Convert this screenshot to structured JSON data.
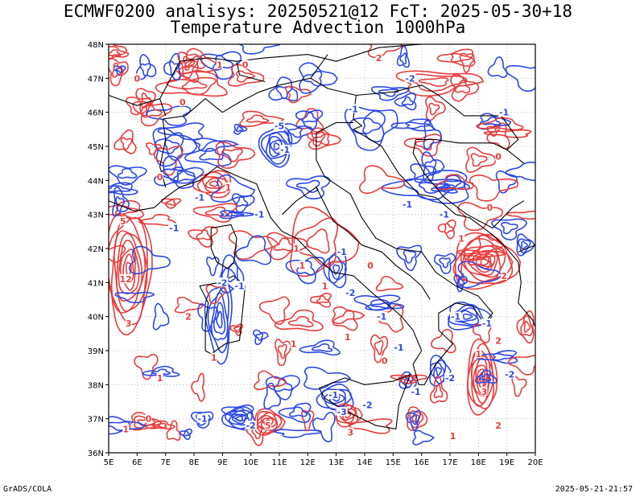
{
  "title_line1": "ECMWF0200 analisys: 20250521@12 FcT: 2025-05-30+18",
  "title_line2": "Temperature Advection 1000hPa",
  "credit": "GrADS/COLA",
  "timestamp": "2025-05-21-21:57",
  "map": {
    "lon_range": [
      5,
      20
    ],
    "lat_range": [
      36,
      48
    ],
    "lon_labels": [
      "5E",
      "6E",
      "7E",
      "8E",
      "9E",
      "10E",
      "11E",
      "12E",
      "13E",
      "14E",
      "15E",
      "16E",
      "17E",
      "18E",
      "19E",
      "20E"
    ],
    "lat_labels": [
      "36N",
      "37N",
      "38N",
      "39N",
      "40N",
      "41N",
      "42N",
      "43N",
      "44N",
      "45N",
      "46N",
      "47N",
      "48N"
    ],
    "colors": {
      "warm_advection": "#e83c3c",
      "cold_advection": "#2a48e6",
      "border": "#000000",
      "grid": "#b0b0b0"
    }
  },
  "contour_labels": [
    {
      "lon": 5.6,
      "lat": 41.1,
      "text": "12",
      "color": "warm"
    },
    {
      "lon": 5.5,
      "lat": 42.8,
      "text": "5",
      "color": "warm"
    },
    {
      "lon": 5.7,
      "lat": 39.8,
      "text": "3",
      "color": "warm"
    },
    {
      "lon": 7.8,
      "lat": 40.0,
      "text": "2",
      "color": "warm"
    },
    {
      "lon": 9.0,
      "lat": 41.0,
      "text": "-2",
      "color": "cold"
    },
    {
      "lon": 9.6,
      "lat": 40.9,
      "text": "-1",
      "color": "cold"
    },
    {
      "lon": 7.6,
      "lat": 46.3,
      "text": "0",
      "color": "warm"
    },
    {
      "lon": 6.0,
      "lat": 47.0,
      "text": "0",
      "color": "warm"
    },
    {
      "lon": 8.9,
      "lat": 47.4,
      "text": "1",
      "color": "warm"
    },
    {
      "lon": 9.8,
      "lat": 47.4,
      "text": "0",
      "color": "warm"
    },
    {
      "lon": 14.5,
      "lat": 47.6,
      "text": "2",
      "color": "warm"
    },
    {
      "lon": 15.6,
      "lat": 47.0,
      "text": "-2",
      "color": "cold"
    },
    {
      "lon": 13.6,
      "lat": 46.1,
      "text": "-1",
      "color": "cold"
    },
    {
      "lon": 11.0,
      "lat": 45.6,
      "text": "-5",
      "color": "cold"
    },
    {
      "lon": 11.2,
      "lat": 44.9,
      "text": "-1",
      "color": "cold"
    },
    {
      "lon": 9.2,
      "lat": 43.8,
      "text": "1",
      "color": "warm"
    },
    {
      "lon": 8.2,
      "lat": 43.5,
      "text": "-1",
      "color": "cold"
    },
    {
      "lon": 6.8,
      "lat": 44.1,
      "text": "0",
      "color": "warm"
    },
    {
      "lon": 10.3,
      "lat": 43.0,
      "text": "-1",
      "color": "cold"
    },
    {
      "lon": 7.3,
      "lat": 42.6,
      "text": "-1",
      "color": "cold"
    },
    {
      "lon": 11.6,
      "lat": 42.0,
      "text": "1",
      "color": "warm"
    },
    {
      "lon": 13.2,
      "lat": 41.9,
      "text": "-1",
      "color": "cold"
    },
    {
      "lon": 12.6,
      "lat": 40.9,
      "text": "1",
      "color": "warm"
    },
    {
      "lon": 13.5,
      "lat": 40.7,
      "text": "-2",
      "color": "cold"
    },
    {
      "lon": 14.6,
      "lat": 40.0,
      "text": "-1",
      "color": "cold"
    },
    {
      "lon": 14.2,
      "lat": 41.5,
      "text": "0",
      "color": "warm"
    },
    {
      "lon": 15.5,
      "lat": 43.3,
      "text": "-1",
      "color": "cold"
    },
    {
      "lon": 18.9,
      "lat": 46.0,
      "text": "-1",
      "color": "cold"
    },
    {
      "lon": 18.7,
      "lat": 44.7,
      "text": "0",
      "color": "warm"
    },
    {
      "lon": 16.8,
      "lat": 43.0,
      "text": "-1",
      "color": "cold"
    },
    {
      "lon": 18.4,
      "lat": 43.2,
      "text": "0",
      "color": "warm"
    },
    {
      "lon": 17.4,
      "lat": 42.3,
      "text": "1",
      "color": "warm"
    },
    {
      "lon": 18.9,
      "lat": 41.2,
      "text": "2",
      "color": "warm"
    },
    {
      "lon": 17.2,
      "lat": 40.0,
      "text": "-1",
      "color": "cold"
    },
    {
      "lon": 18.3,
      "lat": 39.8,
      "text": "-1",
      "color": "cold"
    },
    {
      "lon": 18.7,
      "lat": 39.3,
      "text": "2",
      "color": "warm"
    },
    {
      "lon": 19.1,
      "lat": 38.3,
      "text": "-2",
      "color": "cold"
    },
    {
      "lon": 18.2,
      "lat": 37.8,
      "text": "3",
      "color": "warm"
    },
    {
      "lon": 18.0,
      "lat": 38.9,
      "text": "1",
      "color": "warm"
    },
    {
      "lon": 17.0,
      "lat": 38.2,
      "text": "-2",
      "color": "cold"
    },
    {
      "lon": 18.7,
      "lat": 36.8,
      "text": "2",
      "color": "warm"
    },
    {
      "lon": 15.2,
      "lat": 39.1,
      "text": "-1",
      "color": "cold"
    },
    {
      "lon": 13.4,
      "lat": 39.4,
      "text": "1",
      "color": "warm"
    },
    {
      "lon": 12.9,
      "lat": 37.7,
      "text": "-1",
      "color": "cold"
    },
    {
      "lon": 13.2,
      "lat": 37.2,
      "text": "-3",
      "color": "cold"
    },
    {
      "lon": 13.5,
      "lat": 36.6,
      "text": "3",
      "color": "warm"
    },
    {
      "lon": 14.1,
      "lat": 37.4,
      "text": "-2",
      "color": "cold"
    },
    {
      "lon": 15.8,
      "lat": 37.8,
      "text": "-1",
      "color": "cold"
    },
    {
      "lon": 14.7,
      "lat": 38.7,
      "text": "0",
      "color": "warm"
    },
    {
      "lon": 10.0,
      "lat": 36.8,
      "text": "-2",
      "color": "cold"
    },
    {
      "lon": 10.6,
      "lat": 36.8,
      "text": "5",
      "color": "warm"
    },
    {
      "lon": 8.3,
      "lat": 37.0,
      "text": "-1",
      "color": "cold"
    },
    {
      "lon": 6.4,
      "lat": 37.0,
      "text": "0",
      "color": "warm"
    },
    {
      "lon": 5.6,
      "lat": 36.7,
      "text": "1",
      "color": "warm"
    },
    {
      "lon": 11.5,
      "lat": 39.2,
      "text": "1",
      "color": "warm"
    },
    {
      "lon": 8.7,
      "lat": 38.8,
      "text": "1",
      "color": "warm"
    },
    {
      "lon": 6.8,
      "lat": 38.2,
      "text": "1",
      "color": "warm"
    },
    {
      "lon": 17.1,
      "lat": 36.5,
      "text": "1",
      "color": "warm"
    },
    {
      "lon": 11.8,
      "lat": 41.5,
      "text": "1",
      "color": "warm"
    }
  ]
}
